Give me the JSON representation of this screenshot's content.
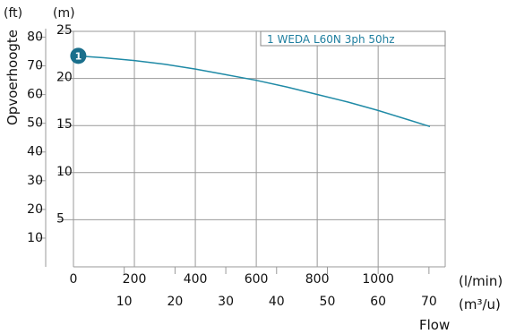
{
  "chart_data": {
    "type": "line",
    "ylabel": "Opvoerhoogte",
    "xlabel": "Flow",
    "units": {
      "head_ft": "(ft)",
      "head_m": "(m)",
      "flow_lmin": "(l/min)",
      "flow_m3h": "(m³/u)"
    },
    "xlim_lmin": [
      0,
      1220
    ],
    "ylim_m": [
      0,
      25
    ],
    "grid": true,
    "legend_position": "top-right",
    "y_ticks_m": [
      5,
      10,
      15,
      20,
      25
    ],
    "y_ticks_ft": [
      10,
      20,
      30,
      40,
      50,
      60,
      70,
      80
    ],
    "x_ticks_lmin": [
      0,
      200,
      400,
      600,
      800,
      1000
    ],
    "x_ticks_m3h": [
      10,
      20,
      30,
      40,
      50,
      60,
      70
    ],
    "series": [
      {
        "name": "1 WEDA L60N 3ph 50hz",
        "marker_label": "1",
        "color": "#1f8aa6",
        "x_lmin": [
          10,
          100,
          200,
          300,
          400,
          500,
          600,
          700,
          800,
          900,
          1000,
          1100,
          1170
        ],
        "y_m": [
          22.4,
          22.2,
          21.9,
          21.5,
          21.0,
          20.4,
          19.8,
          19.1,
          18.3,
          17.5,
          16.6,
          15.6,
          14.9
        ]
      }
    ]
  }
}
